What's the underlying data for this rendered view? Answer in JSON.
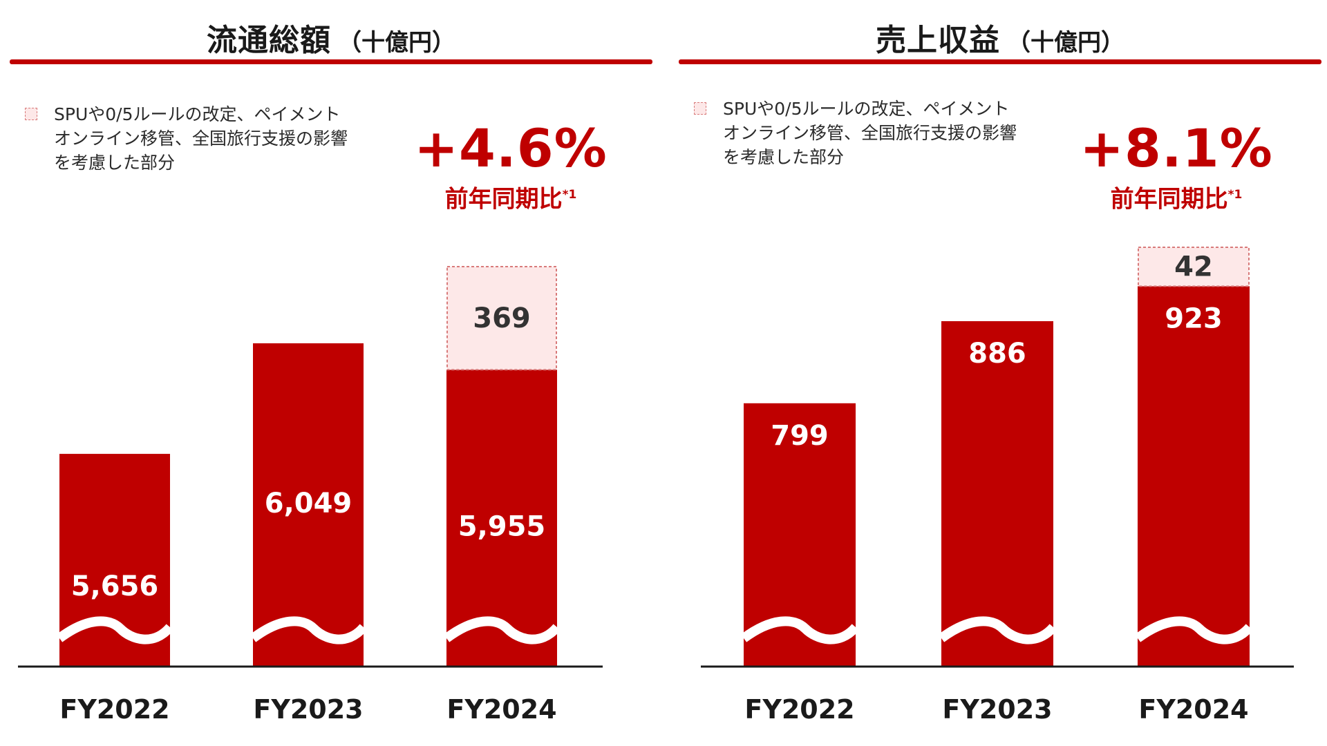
{
  "colors": {
    "bar": "#bf0000",
    "adjust_fill": "#fde8e8",
    "adjust_border": "#d87a7a",
    "accent": "#bf0000",
    "axis": "#1a1a1a"
  },
  "legend_text": "SPUや0/5ルールの改定、ペイメント\nオンライン移管、全国旅行支援の影響\nを考慮した部分",
  "growth_label": "前年同期比",
  "growth_note": "*1",
  "chart_data": [
    {
      "type": "bar",
      "stacked": true,
      "title": "流通総額",
      "unit": "（十億円）",
      "axis_break": true,
      "growth": "+4.6%",
      "categories": [
        "FY2022",
        "FY2023",
        "FY2024"
      ],
      "series": [
        {
          "values": [
            5656,
            6049,
            5955
          ],
          "labels": [
            "5,656",
            "6,049",
            "5,955"
          ]
        },
        {
          "name": "SPUや0/5ルールの改定、ペイメントオンライン移管、全国旅行支援の影響を考慮した部分",
          "values": [
            null,
            null,
            369
          ],
          "labels": [
            "",
            "",
            "369"
          ]
        }
      ]
    },
    {
      "type": "bar",
      "stacked": true,
      "title": "売上収益",
      "unit": "（十億円）",
      "axis_break": true,
      "growth": "+8.1%",
      "categories": [
        "FY2022",
        "FY2023",
        "FY2024"
      ],
      "series": [
        {
          "values": [
            799,
            886,
            923
          ],
          "labels": [
            "799",
            "886",
            "923"
          ]
        },
        {
          "name": "SPUや0/5ルールの改定、ペイメントオンライン移管、全国旅行支援の影響を考慮した部分",
          "values": [
            null,
            null,
            42
          ],
          "labels": [
            "",
            "",
            "42"
          ]
        }
      ]
    }
  ]
}
